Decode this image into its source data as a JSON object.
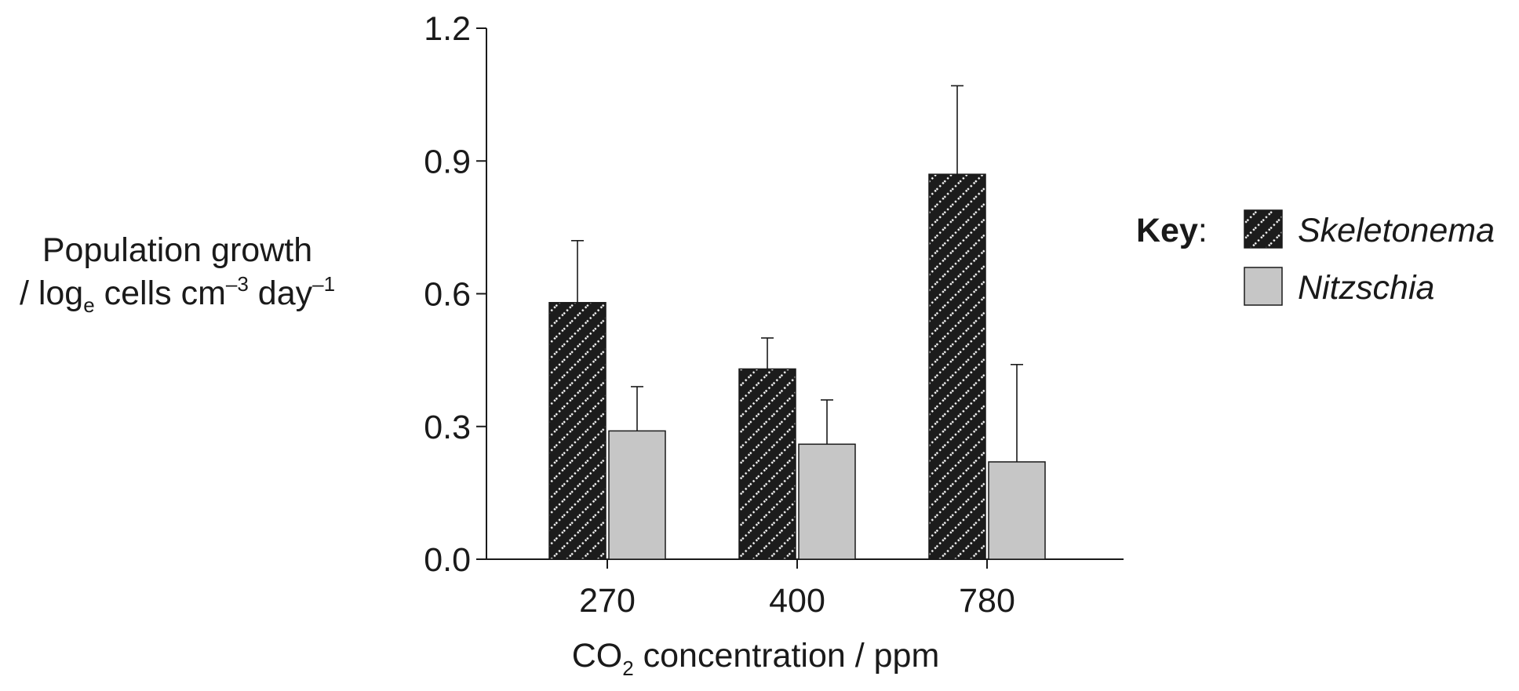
{
  "chart_data": {
    "type": "bar",
    "categories": [
      "270",
      "400",
      "780"
    ],
    "series": [
      {
        "name": "Skeletonema",
        "values": [
          0.58,
          0.43,
          0.87
        ],
        "error_upper": [
          0.72,
          0.5,
          1.07
        ],
        "color": "#1c1c1c",
        "pattern": "dotted-diagonal"
      },
      {
        "name": "Nitzschia",
        "values": [
          0.29,
          0.26,
          0.22
        ],
        "error_upper": [
          0.39,
          0.36,
          0.44
        ],
        "color": "#c6c6c6",
        "pattern": "solid"
      }
    ],
    "ylabel_line1": "Population growth",
    "ylabel_line2": {
      "part1": "/ log",
      "sub": "e",
      "part2": " cells cm",
      "sup1": "–3",
      "part3": " day",
      "sup2": "–1"
    },
    "xlabel": {
      "part1": "CO",
      "sub": "2",
      "part2": " concentration / ppm"
    },
    "ylim": [
      0.0,
      1.2
    ],
    "yticks": [
      "0.0",
      "0.3",
      "0.6",
      "0.9",
      "1.2"
    ],
    "grid": false,
    "legend_title": "Key",
    "legend_placement": "right"
  }
}
